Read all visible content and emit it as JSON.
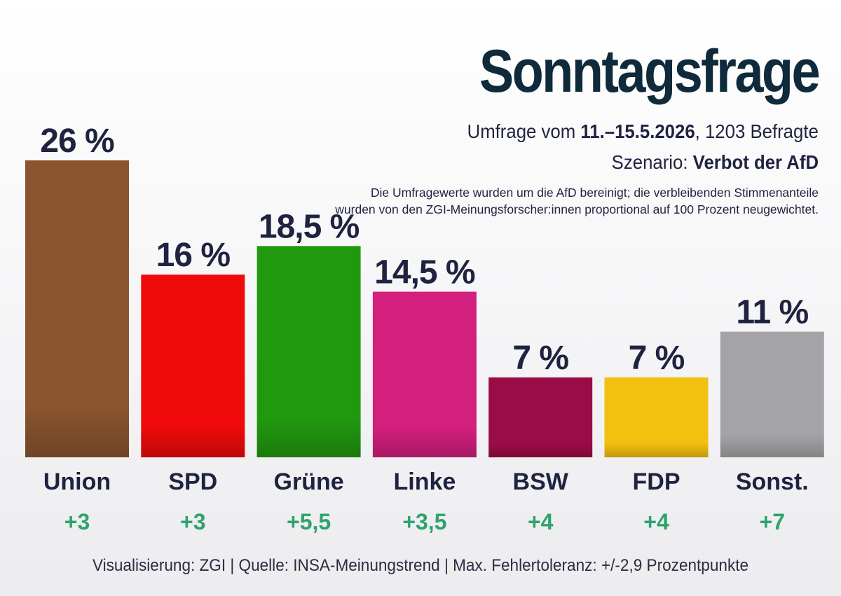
{
  "title": "Sonntagsfrage",
  "subtitle": {
    "prefix": "Umfrage vom ",
    "dates": "11.–15.5.2026",
    "suffix": ", 1203 Befragte",
    "scenario_prefix": "Szenario: ",
    "scenario": "Verbot der AfD"
  },
  "note": "Die Umfragewerte wurden um die AfD bereinigt; die verbleibenden Stimmenanteile wurden von den ZGI-Meinungsforscher:innen proportional auf 100 Prozent neugewichtet.",
  "footer": "Visualisierung: ZGI | Quelle: INSA-Meinungstrend | Max. Fehlertoleranz: +/-2,9 Prozentpunkte",
  "colors": {
    "change_positive": "#2ea36a",
    "value_label": "#1f2340"
  },
  "chart_data": {
    "type": "bar",
    "categories": [
      "Union",
      "SPD",
      "Grüne",
      "Linke",
      "BSW",
      "FDP",
      "Sonst."
    ],
    "values": [
      26,
      16,
      18.5,
      14.5,
      7,
      7,
      11
    ],
    "value_labels": [
      "26 %",
      "16 %",
      "18,5 %",
      "14,5 %",
      "7 %",
      "7 %",
      "11 %"
    ],
    "changes": [
      "+3",
      "+3",
      "+5,5",
      "+3,5",
      "+4",
      "+4",
      "+7"
    ],
    "colors": [
      "#8b5530",
      "#f00a0a",
      "#21990f",
      "#d31f7d",
      "#9a0c45",
      "#f2c00f",
      "#a4a4a6"
    ],
    "ylim": [
      0,
      26
    ],
    "grid": false,
    "legend": "none"
  }
}
